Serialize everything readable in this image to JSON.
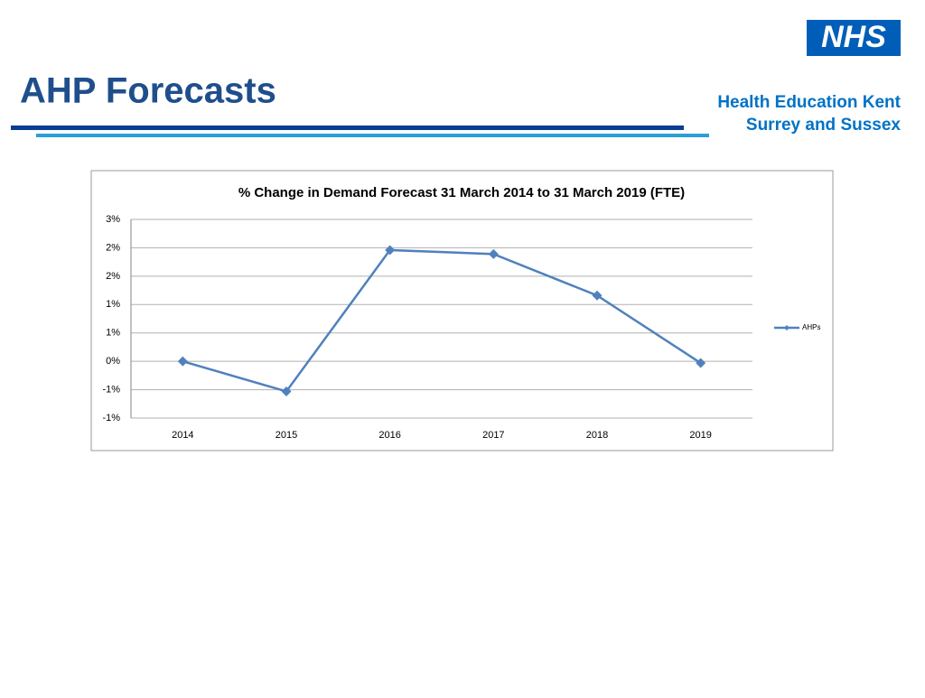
{
  "header": {
    "title": "AHP Forecasts",
    "logo": "NHS",
    "org_line1": "Health Education Kent",
    "org_line2": "Surrey and Sussex"
  },
  "chart_data": {
    "type": "line",
    "title": "% Change in Demand Forecast 31 March 2014 to 31 March 2019 (FTE)",
    "categories": [
      "2014",
      "2015",
      "2016",
      "2017",
      "2018",
      "2019"
    ],
    "series": [
      {
        "name": "AHPs",
        "color": "#4f81bd",
        "values": [
          0,
          -0.53,
          1.96,
          1.89,
          1.16,
          -0.03
        ]
      }
    ],
    "ylim": [
      -1,
      2.5
    ],
    "yticks": [
      {
        "value": -1,
        "label": "-1%"
      },
      {
        "value": -0.5,
        "label": "-1%"
      },
      {
        "value": 0,
        "label": "0%"
      },
      {
        "value": 0.5,
        "label": "1%"
      },
      {
        "value": 1,
        "label": "1%"
      },
      {
        "value": 1.5,
        "label": "2%"
      },
      {
        "value": 2,
        "label": "2%"
      },
      {
        "value": 2.5,
        "label": "3%"
      }
    ],
    "grid": true,
    "legend": "right"
  }
}
